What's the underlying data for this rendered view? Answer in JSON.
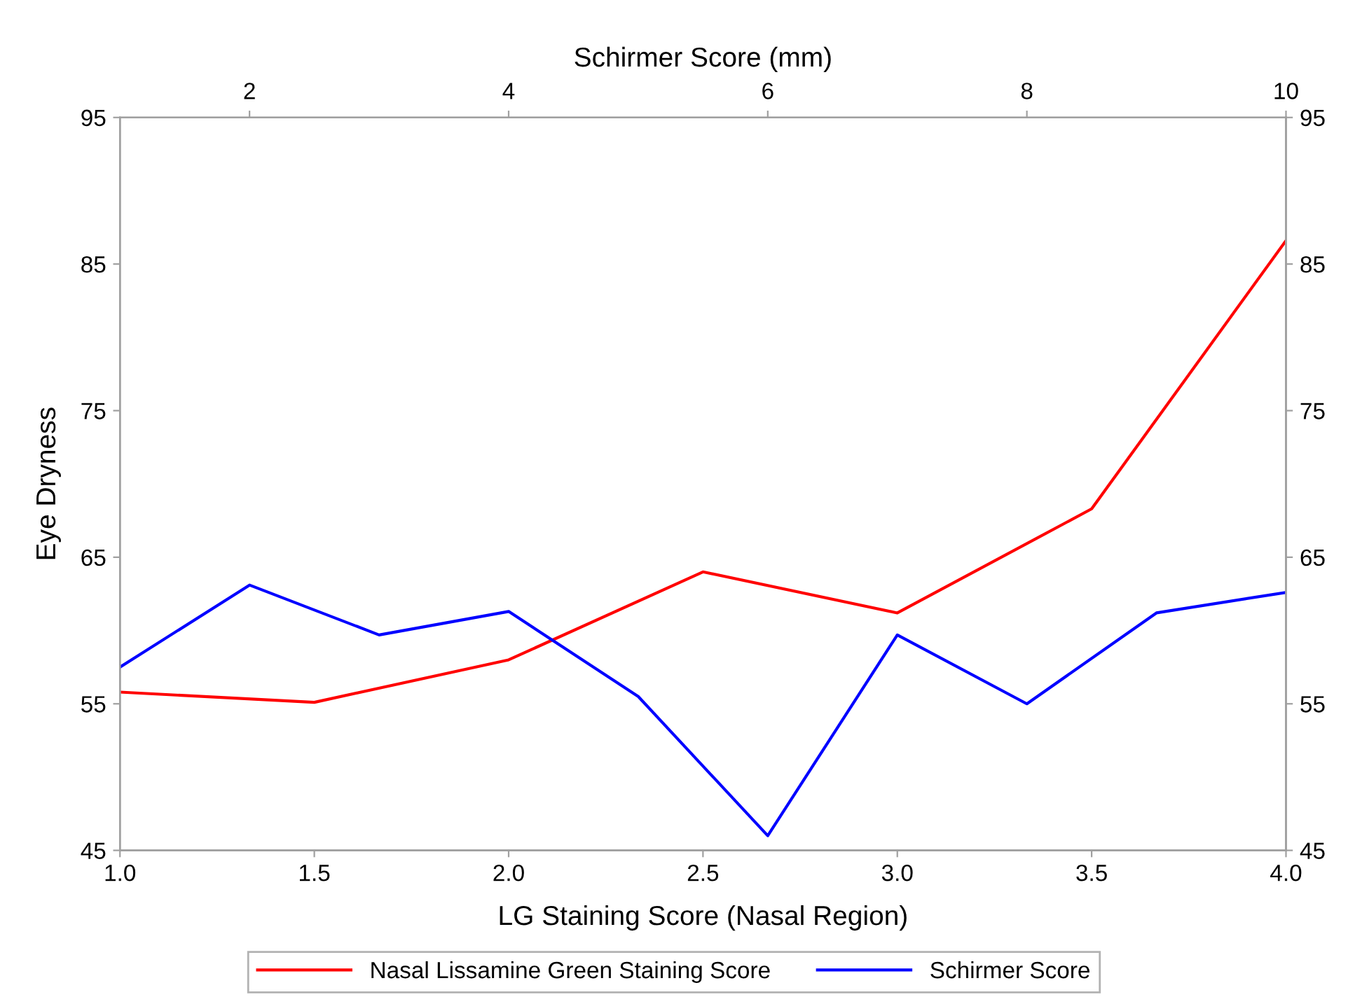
{
  "chart_data": {
    "type": "line",
    "xlabel": "LG Staining Score (Nasal Region)",
    "ylabel": "Eye Dryness",
    "x2label": "Schirmer Score (mm)",
    "xlim": [
      1.0,
      4.0
    ],
    "xticks": [
      {
        "value": 1.0,
        "label": "1.0"
      },
      {
        "value": 1.5,
        "label": "1.5"
      },
      {
        "value": 2.0,
        "label": "2.0"
      },
      {
        "value": 2.5,
        "label": "2.5"
      },
      {
        "value": 3.0,
        "label": "3.0"
      },
      {
        "value": 3.5,
        "label": "3.5"
      },
      {
        "value": 4.0,
        "label": "4.0"
      }
    ],
    "x2lim": [
      1,
      10
    ],
    "x2ticks": [
      2,
      4,
      6,
      8,
      10
    ],
    "ylim": [
      45,
      95
    ],
    "yticks": [
      45,
      55,
      65,
      75,
      85,
      95
    ],
    "y2lim": [
      45,
      95
    ],
    "y2ticks": [
      45,
      55,
      65,
      75,
      85,
      95
    ],
    "series": [
      {
        "name": "Nasal Lissamine Green Staining Score",
        "color": "#ff0000",
        "x": [
          1.0,
          1.5,
          2.0,
          2.5,
          3.0,
          3.5,
          4.0
        ],
        "values": [
          55.8,
          55.1,
          58.0,
          64.0,
          61.2,
          68.3,
          86.6
        ]
      },
      {
        "name": "Schirmer Score",
        "color": "#0000ff",
        "axis": "x2",
        "x": [
          1,
          2,
          3,
          4,
          5,
          6,
          7,
          8,
          9,
          10
        ],
        "values": [
          57.5,
          63.1,
          59.7,
          61.3,
          55.5,
          46.0,
          59.7,
          55.0,
          61.2,
          62.6
        ]
      }
    ],
    "grid": false,
    "legend": "bottom",
    "marker": "none",
    "line_style": "solid"
  }
}
